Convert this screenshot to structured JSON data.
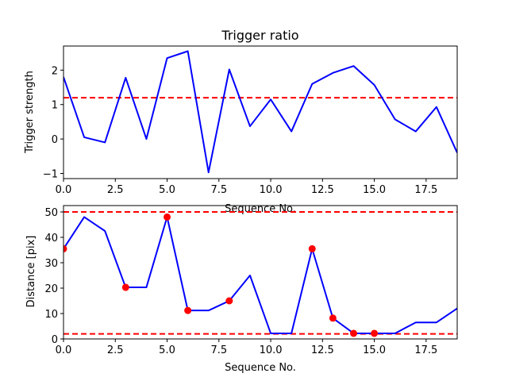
{
  "chart_data": [
    {
      "type": "line",
      "title": "Trigger ratio",
      "xlabel": "Sequence No.",
      "ylabel": "Trigger strength",
      "xlim": [
        0,
        19
      ],
      "ylim": [
        -1.15,
        2.7
      ],
      "xticks": [
        0,
        2.5,
        5,
        7.5,
        10,
        12.5,
        15,
        17.5
      ],
      "xtick_labels": [
        "0.0",
        "2.5",
        "5.0",
        "7.5",
        "10.0",
        "12.5",
        "15.0",
        "17.5"
      ],
      "yticks": [
        -1,
        0,
        1,
        2
      ],
      "ytick_labels": [
        "−1",
        "0",
        "1",
        "2"
      ],
      "grid": false,
      "series": [
        {
          "color": "#0000ff",
          "x": [
            0,
            1,
            2,
            3,
            4,
            5,
            6,
            7,
            8,
            9,
            10,
            11,
            12,
            13,
            14,
            15,
            16,
            17,
            18,
            19
          ],
          "values": [
            1.8,
            0.05,
            -0.1,
            1.78,
            0.0,
            2.35,
            2.55,
            -0.97,
            2.02,
            0.37,
            1.15,
            0.22,
            1.6,
            1.92,
            2.12,
            1.57,
            0.57,
            0.22,
            0.93,
            -0.4
          ]
        }
      ],
      "hlines": [
        {
          "y": 1.2,
          "color": "#ff0000",
          "style": "dashed"
        }
      ]
    },
    {
      "type": "line",
      "title": "",
      "xlabel": "Sequence No.",
      "ylabel": "Distance [pix]",
      "xlim": [
        0,
        19
      ],
      "ylim": [
        0,
        52.5
      ],
      "xticks": [
        0,
        2.5,
        5,
        7.5,
        10,
        12.5,
        15,
        17.5
      ],
      "xtick_labels": [
        "0.0",
        "2.5",
        "5.0",
        "7.5",
        "10.0",
        "12.5",
        "15.0",
        "17.5"
      ],
      "yticks": [
        0,
        10,
        20,
        30,
        40,
        50
      ],
      "ytick_labels": [
        "0",
        "10",
        "20",
        "30",
        "40",
        "50"
      ],
      "grid": false,
      "series": [
        {
          "color": "#0000ff",
          "x": [
            0,
            1,
            2,
            3,
            4,
            5,
            6,
            7,
            8,
            9,
            10,
            11,
            12,
            13,
            14,
            15,
            16,
            17,
            18,
            19
          ],
          "values": [
            35.5,
            48.0,
            42.5,
            20.3,
            20.3,
            48.0,
            11.2,
            11.2,
            15.0,
            25.0,
            2.2,
            2.2,
            35.5,
            8.2,
            2.2,
            2.2,
            2.2,
            6.5,
            6.5,
            12.0
          ]
        }
      ],
      "markers": {
        "color": "#ff0000",
        "x": [
          0,
          3,
          5,
          6,
          8,
          12,
          13,
          14,
          15
        ],
        "values": [
          35.5,
          20.3,
          48.0,
          11.2,
          15.0,
          35.5,
          8.2,
          2.2,
          2.2
        ]
      },
      "hlines": [
        {
          "y": 50,
          "color": "#ff0000",
          "style": "dashed"
        },
        {
          "y": 2,
          "color": "#ff0000",
          "style": "dashed"
        }
      ]
    }
  ]
}
